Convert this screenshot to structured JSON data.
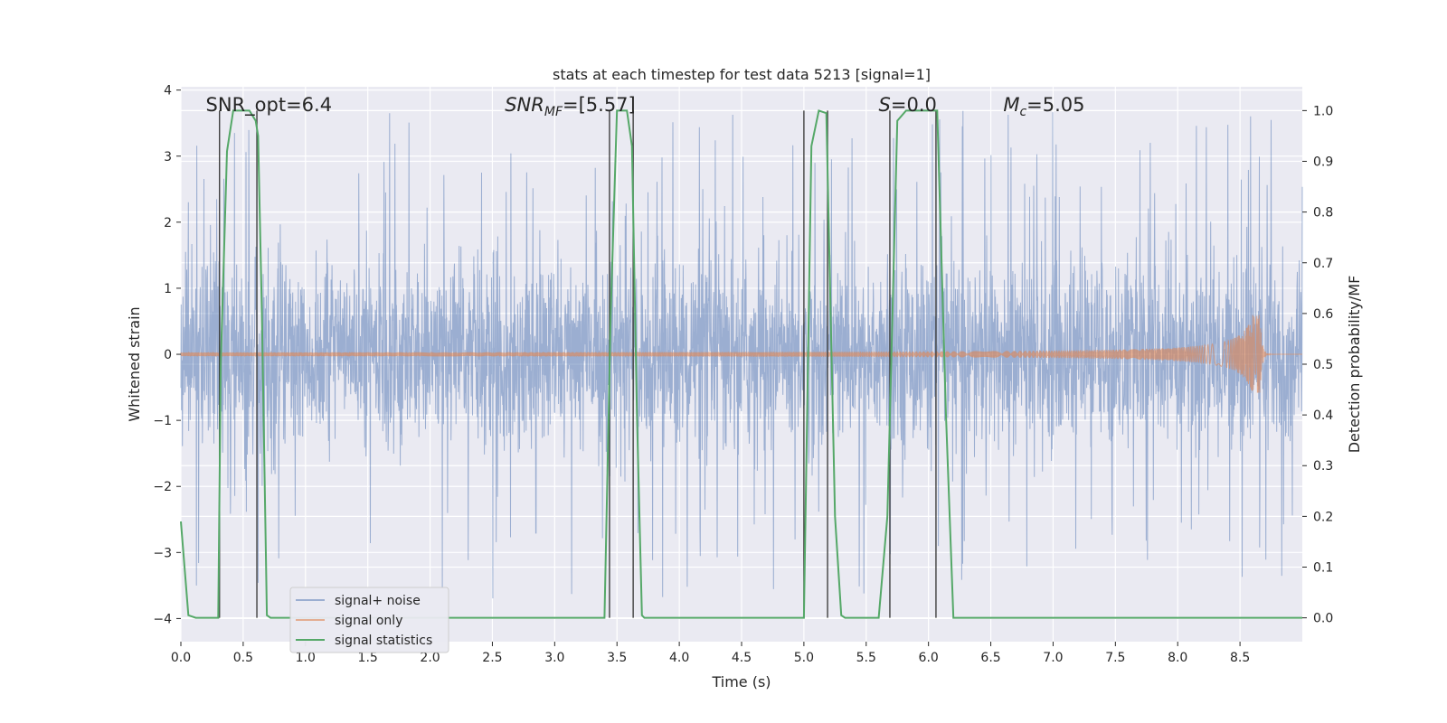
{
  "chart_data": {
    "type": "line",
    "title": "stats at each timestep for test data 5213 [signal=1]",
    "xlabel": "Time (s)",
    "ylabel_left": "Whitened strain",
    "ylabel_right": "Detection probability/MF",
    "xlim": [
      0,
      9.0
    ],
    "ylim_left": [
      -4.35,
      4.05
    ],
    "ylim_right": [
      -0.047,
      1.047
    ],
    "grid": true,
    "x_ticks": [
      "0.0",
      "0.5",
      "1.0",
      "1.5",
      "2.0",
      "2.5",
      "3.0",
      "3.5",
      "4.0",
      "4.5",
      "5.0",
      "5.5",
      "6.0",
      "6.5",
      "7.0",
      "7.5",
      "8.0",
      "8.5"
    ],
    "y_left_ticks": [
      "4",
      "3",
      "2",
      "1",
      "0",
      "−1",
      "−2",
      "−3",
      "−4"
    ],
    "y_right_ticks": [
      "1.0",
      "0.9",
      "0.8",
      "0.7",
      "0.6",
      "0.5",
      "0.4",
      "0.3",
      "0.2",
      "0.1",
      "0.0"
    ],
    "annotations": [
      {
        "id": "snr_opt",
        "text": "SNR_opt=6.4",
        "x": 0.2
      },
      {
        "id": "snr_mf",
        "text": "SNR",
        "sub": "MF",
        "rest": "=[5.57]",
        "x": 2.6
      },
      {
        "id": "s",
        "text": "S",
        "rest": "=0.0",
        "x": 5.6
      },
      {
        "id": "mc",
        "text": "M",
        "sub": "c",
        "rest": "=5.05",
        "x": 6.6
      }
    ],
    "legend": {
      "position": "lower-left",
      "entries": [
        "signal+ noise",
        "signal only",
        "signal statistics"
      ]
    },
    "colors": {
      "noise": "#4c72b0",
      "signal": "#dd8452",
      "stats": "#55a868",
      "plot_bg": "#eaeaf2",
      "vline": "#404040"
    },
    "series": [
      {
        "name": "signal+ noise",
        "axis": "left",
        "description_values": "whitened strain noise, amplitude envelope roughly ±1.4 with spikes up to ±3.7",
        "t_start": 0.0,
        "t_end": 9.0
      },
      {
        "name": "signal only",
        "axis": "left",
        "chirp": {
          "t_start": 0.0,
          "t_merger": 8.66,
          "amp_peak": 0.6,
          "amp_start": 0.02
        }
      },
      {
        "name": "signal statistics",
        "axis": "right",
        "points": [
          [
            0.0,
            0.19
          ],
          [
            0.06,
            0.005
          ],
          [
            0.12,
            0.0
          ],
          [
            0.3,
            0.0
          ],
          [
            0.32,
            0.5
          ],
          [
            0.37,
            0.92
          ],
          [
            0.42,
            1.0
          ],
          [
            0.55,
            1.0
          ],
          [
            0.6,
            0.98
          ],
          [
            0.62,
            0.95
          ],
          [
            0.65,
            0.6
          ],
          [
            0.69,
            0.005
          ],
          [
            0.72,
            0.0
          ],
          [
            3.4,
            0.0
          ],
          [
            3.45,
            0.6
          ],
          [
            3.5,
            1.0
          ],
          [
            3.58,
            1.0
          ],
          [
            3.62,
            0.93
          ],
          [
            3.66,
            0.4
          ],
          [
            3.7,
            0.005
          ],
          [
            3.72,
            0.0
          ],
          [
            5.0,
            0.0
          ],
          [
            5.06,
            0.93
          ],
          [
            5.12,
            1.0
          ],
          [
            5.18,
            0.995
          ],
          [
            5.25,
            0.2
          ],
          [
            5.3,
            0.005
          ],
          [
            5.33,
            0.0
          ],
          [
            5.6,
            0.0
          ],
          [
            5.67,
            0.2
          ],
          [
            5.75,
            0.98
          ],
          [
            5.82,
            1.0
          ],
          [
            6.07,
            1.0
          ],
          [
            6.14,
            0.4
          ],
          [
            6.2,
            0.0
          ],
          [
            9.0,
            0.0
          ]
        ]
      }
    ],
    "vertical_lines": [
      0.31,
      0.61,
      3.44,
      3.63,
      5.0,
      5.19,
      5.69,
      6.06
    ]
  }
}
